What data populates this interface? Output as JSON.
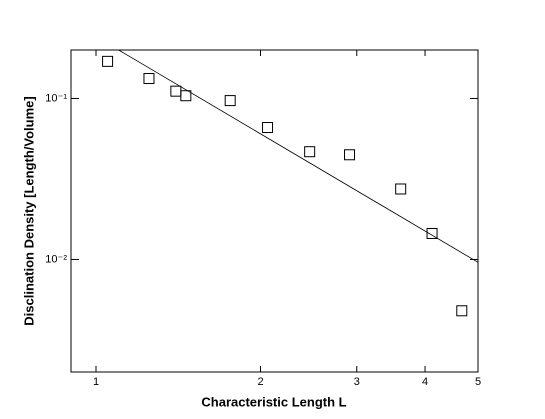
{
  "chart_data": {
    "type": "scatter",
    "xlabel": "Characteristic Length L",
    "ylabel": "Disclination Density [Length/Volume]",
    "xscale": "log",
    "yscale": "log",
    "xlim": [
      0.9,
      5
    ],
    "ylim": [
      0.002,
      0.2
    ],
    "xticks": [
      1,
      2,
      3,
      4,
      5
    ],
    "yticks": [
      {
        "value": 0.1,
        "label": "10⁻¹"
      },
      {
        "value": 0.01,
        "label": "10⁻²"
      }
    ],
    "series": [
      {
        "type": "scatter",
        "color": "#000000",
        "x": [
          1.05,
          1.25,
          1.4,
          1.46,
          1.76,
          2.06,
          2.46,
          2.91,
          3.61,
          4.12,
          4.67
        ],
        "values": [
          0.17,
          0.133,
          0.111,
          0.104,
          0.097,
          0.066,
          0.0467,
          0.0447,
          0.0274,
          0.0145,
          0.0048
        ]
      },
      {
        "type": "line",
        "color": "#000000",
        "x": [
          1.1,
          5
        ],
        "values": [
          0.2,
          0.0096
        ]
      }
    ]
  }
}
